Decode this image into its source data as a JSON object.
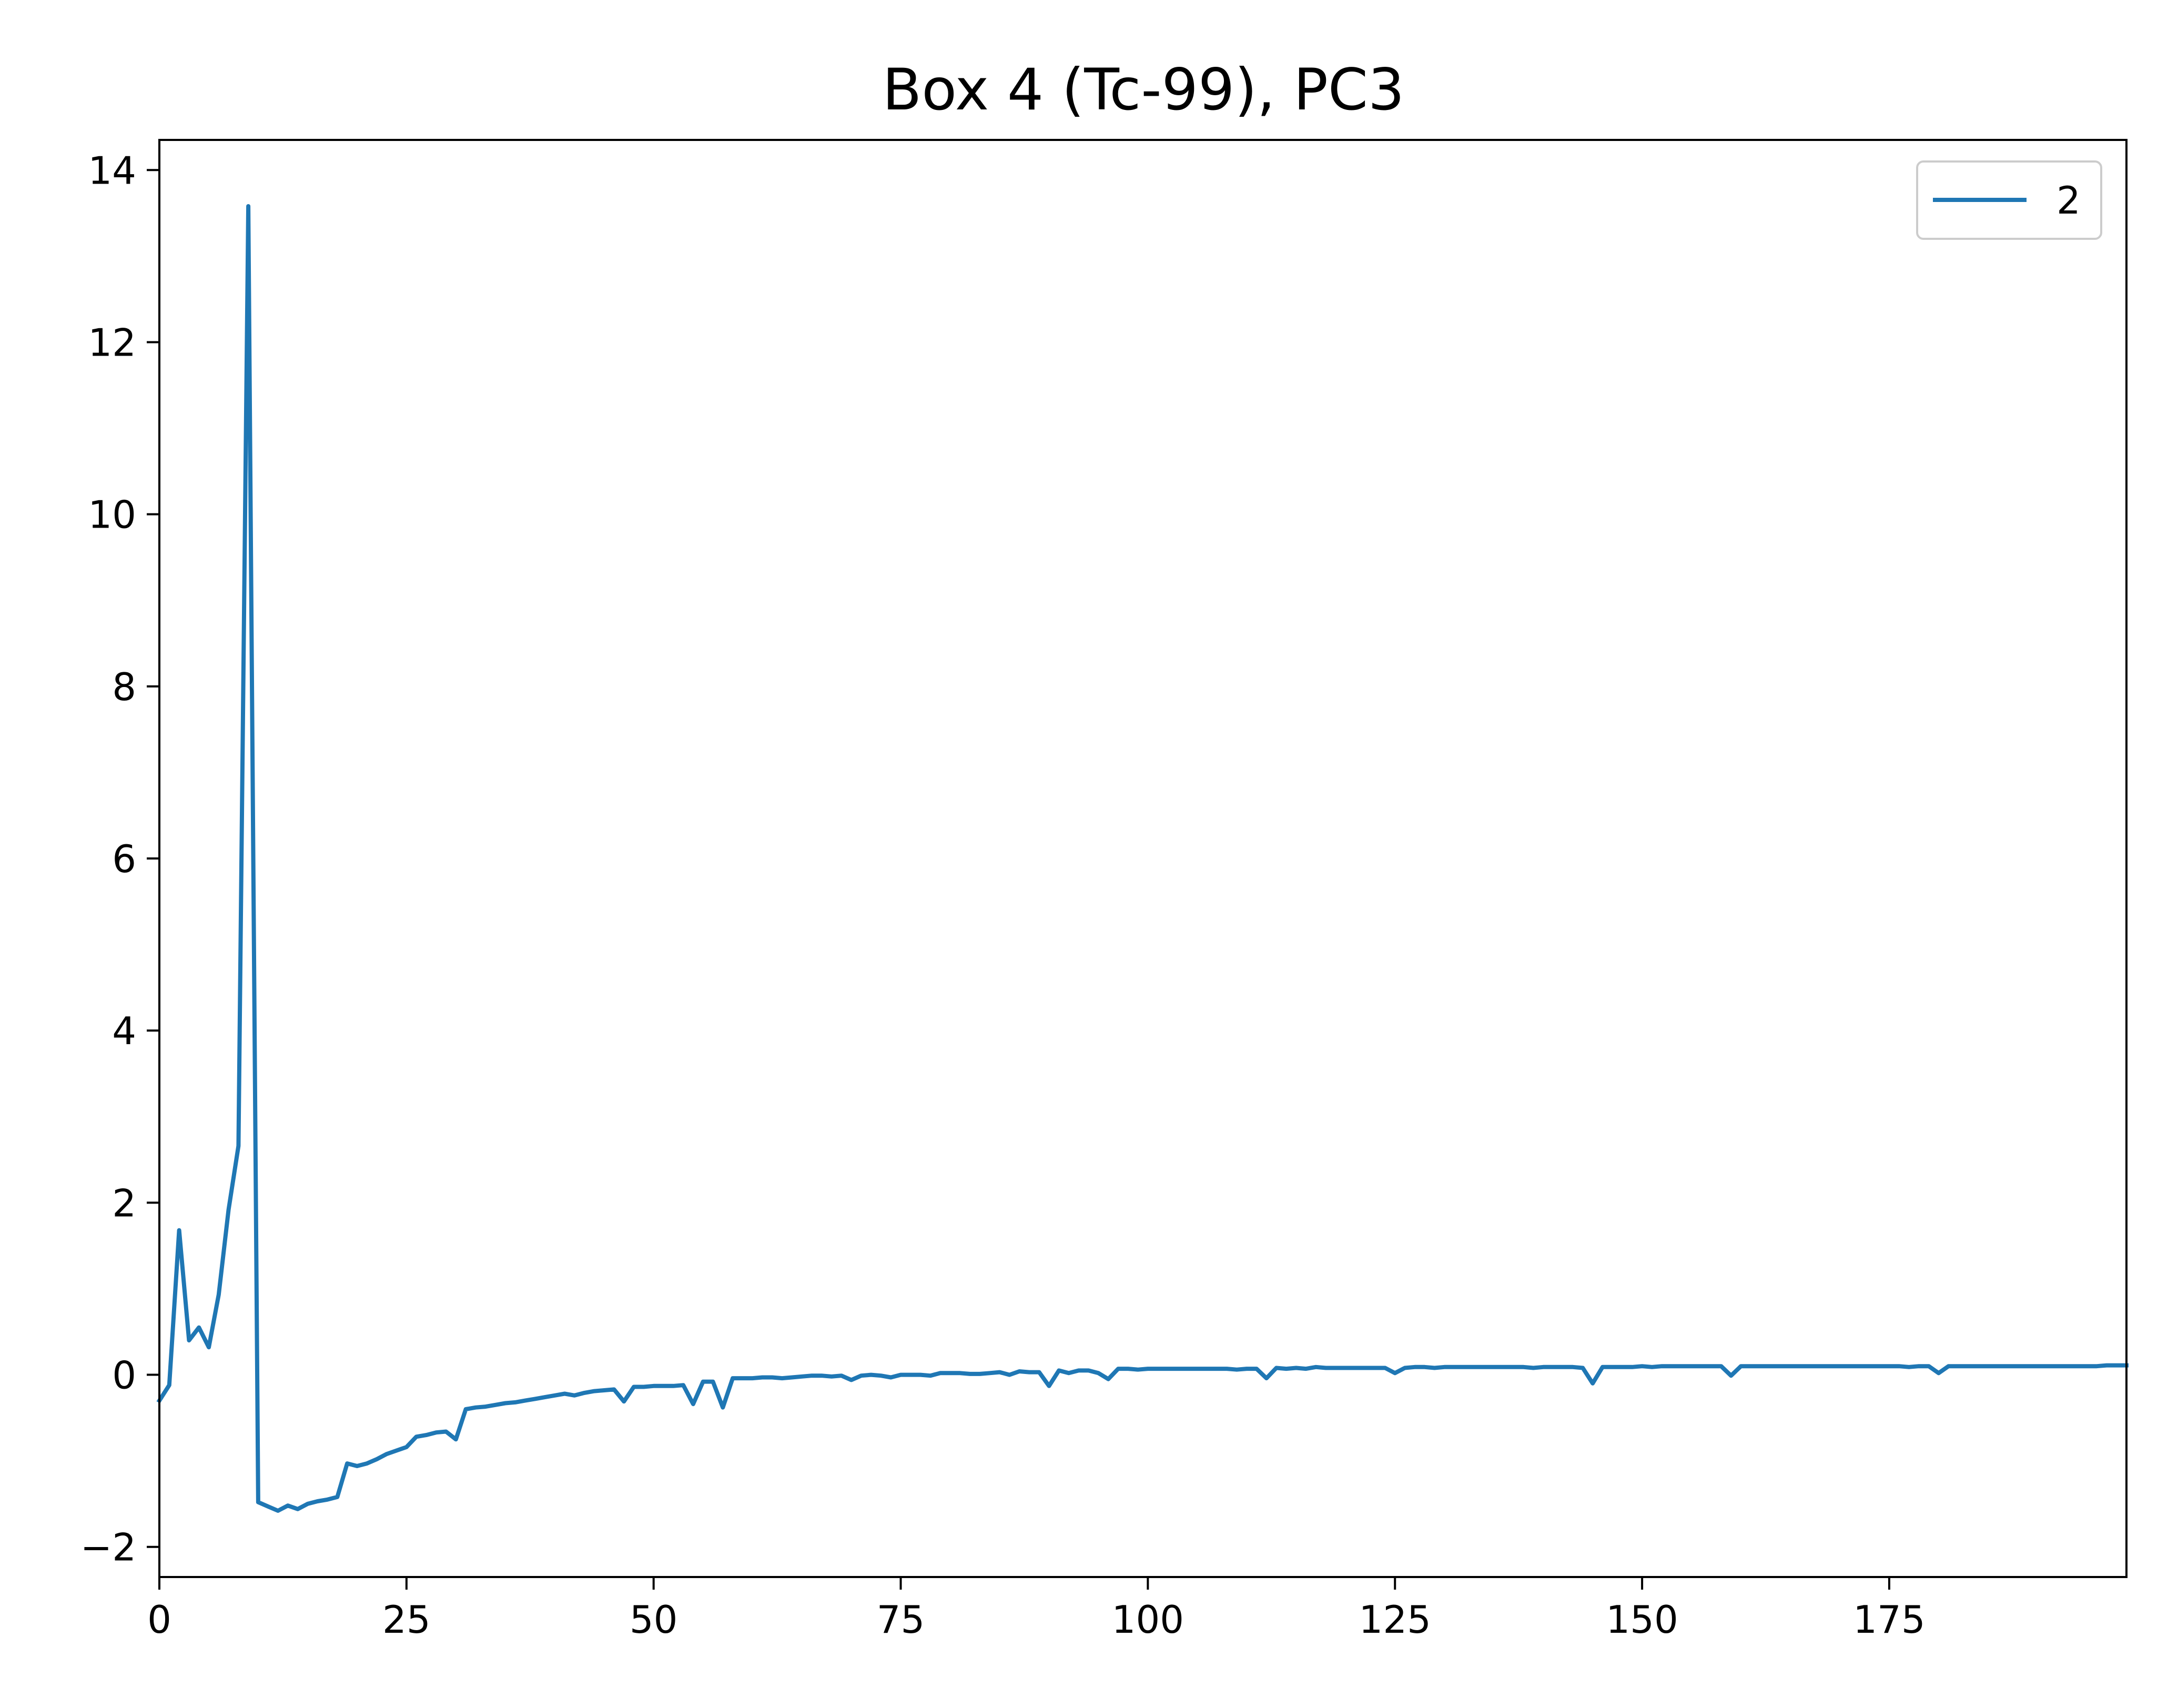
{
  "chart_data": {
    "type": "line",
    "title": "Box 4 (Tc-99), PC3",
    "xlabel": "",
    "ylabel": "",
    "xlim": [
      0,
      199
    ],
    "ylim": [
      -2.35,
      14.35
    ],
    "x_ticks": [
      0,
      25,
      50,
      75,
      100,
      125,
      150,
      175
    ],
    "x_tick_labels": [
      "0",
      "25",
      "50",
      "75",
      "100",
      "125",
      "150",
      "175"
    ],
    "y_ticks": [
      -2,
      0,
      2,
      4,
      6,
      8,
      10,
      12,
      14
    ],
    "y_tick_labels": [
      "−2",
      "0",
      "2",
      "4",
      "6",
      "8",
      "10",
      "12",
      "14"
    ],
    "grid": false,
    "legend_position": "top-right",
    "color": "#1f77b4",
    "series": [
      {
        "name": "2",
        "color": "#1f77b4",
        "values": [
          -0.3,
          -0.12,
          1.68,
          0.4,
          0.55,
          0.32,
          0.93,
          1.92,
          2.66,
          13.58,
          -1.48,
          -1.53,
          -1.58,
          -1.52,
          -1.56,
          -1.5,
          -1.47,
          -1.45,
          -1.42,
          -1.03,
          -1.06,
          -1.03,
          -0.98,
          -0.92,
          -0.88,
          -0.84,
          -0.72,
          -0.7,
          -0.67,
          -0.66,
          -0.75,
          -0.4,
          -0.38,
          -0.37,
          -0.35,
          -0.33,
          -0.32,
          -0.3,
          -0.28,
          -0.26,
          -0.24,
          -0.22,
          -0.24,
          -0.21,
          -0.19,
          -0.18,
          -0.17,
          -0.31,
          -0.14,
          -0.14,
          -0.13,
          -0.13,
          -0.13,
          -0.12,
          -0.34,
          -0.08,
          -0.08,
          -0.38,
          -0.04,
          -0.04,
          -0.04,
          -0.03,
          -0.03,
          -0.04,
          -0.03,
          -0.02,
          -0.01,
          -0.01,
          -0.02,
          -0.01,
          -0.06,
          -0.01,
          0.0,
          -0.01,
          -0.03,
          0.0,
          0.0,
          0.0,
          -0.01,
          0.02,
          0.02,
          0.02,
          0.01,
          0.01,
          0.02,
          0.03,
          0.0,
          0.04,
          0.03,
          0.03,
          -0.13,
          0.05,
          0.02,
          0.05,
          0.05,
          0.02,
          -0.05,
          0.07,
          0.07,
          0.06,
          0.07,
          0.07,
          0.07,
          0.07,
          0.07,
          0.07,
          0.07,
          0.07,
          0.07,
          0.06,
          0.07,
          0.07,
          -0.04,
          0.08,
          0.07,
          0.08,
          0.07,
          0.09,
          0.08,
          0.08,
          0.08,
          0.08,
          0.08,
          0.08,
          0.08,
          0.02,
          0.08,
          0.09,
          0.09,
          0.08,
          0.09,
          0.09,
          0.09,
          0.09,
          0.09,
          0.09,
          0.09,
          0.09,
          0.09,
          0.08,
          0.09,
          0.09,
          0.09,
          0.09,
          0.08,
          -0.1,
          0.09,
          0.09,
          0.09,
          0.09,
          0.1,
          0.09,
          0.1,
          0.1,
          0.1,
          0.1,
          0.1,
          0.1,
          0.1,
          -0.01,
          0.1,
          0.1,
          0.1,
          0.1,
          0.1,
          0.1,
          0.1,
          0.1,
          0.1,
          0.1,
          0.1,
          0.1,
          0.1,
          0.1,
          0.1,
          0.1,
          0.1,
          0.09,
          0.1,
          0.1,
          0.02,
          0.1,
          0.1,
          0.1,
          0.1,
          0.1,
          0.1,
          0.1,
          0.1,
          0.1,
          0.1,
          0.1,
          0.1,
          0.1,
          0.1,
          0.1,
          0.1,
          0.11,
          0.11,
          0.11
        ]
      }
    ]
  }
}
